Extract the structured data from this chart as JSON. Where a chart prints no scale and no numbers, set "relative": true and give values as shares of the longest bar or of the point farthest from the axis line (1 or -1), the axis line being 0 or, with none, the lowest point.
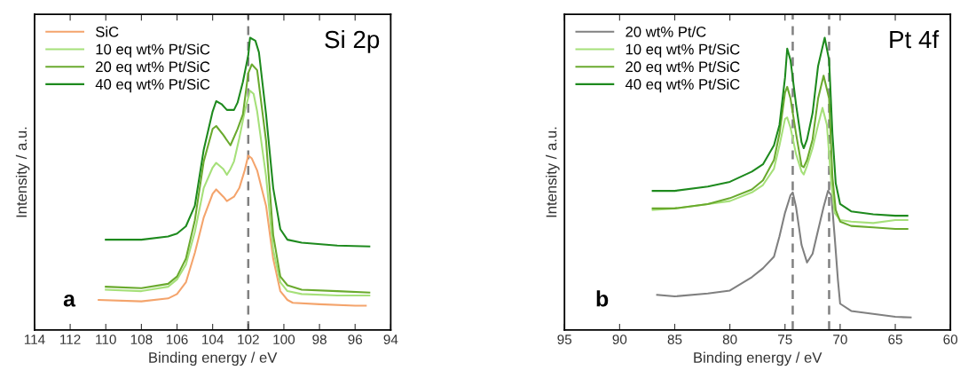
{
  "chart_data": [
    {
      "type": "line",
      "relative": true,
      "xlabel": "Binding energy / eV",
      "ylabel": "Intensity / a.u.",
      "xlim": [
        114,
        94
      ],
      "xticks": [
        114,
        112,
        110,
        108,
        106,
        104,
        102,
        100,
        98,
        96,
        94
      ],
      "legend": "top left",
      "tick_labels": "x",
      "annotations": [
        "Si 2p",
        "a"
      ],
      "ref_lines": [
        {
          "axis": "x",
          "value": 102.0,
          "color": "#808080",
          "line_style": "dashed"
        }
      ],
      "series": [
        {
          "name": "SiC",
          "color": "#f4a46c",
          "x": [
            110.4,
            108,
            106.5,
            106,
            105.5,
            105,
            104.5,
            104,
            103.8,
            103.4,
            103.2,
            102.8,
            102.5,
            102.2,
            102,
            101.8,
            101.5,
            101,
            100.6,
            100.2,
            99.8,
            99.5,
            98,
            96,
            95.4
          ],
          "values": [
            0.103,
            0.098,
            0.108,
            0.123,
            0.163,
            0.264,
            0.385,
            0.466,
            0.481,
            0.456,
            0.441,
            0.456,
            0.486,
            0.546,
            0.597,
            0.587,
            0.546,
            0.425,
            0.244,
            0.133,
            0.103,
            0.093,
            0.088,
            0.083,
            0.083
          ]
        },
        {
          "name": "10 eq wt% Pt/SiC",
          "color": "#a6e07a",
          "x": [
            110,
            108,
            106.5,
            106,
            105.5,
            105,
            104.5,
            104,
            103.8,
            103.4,
            103.2,
            103,
            102.8,
            102.5,
            102.2,
            101.9,
            101.7,
            101.5,
            101,
            100.6,
            100.2,
            99.8,
            99,
            97,
            95.2
          ],
          "values": [
            0.138,
            0.133,
            0.148,
            0.173,
            0.224,
            0.335,
            0.486,
            0.556,
            0.572,
            0.551,
            0.531,
            0.551,
            0.577,
            0.657,
            0.748,
            0.819,
            0.808,
            0.748,
            0.526,
            0.274,
            0.163,
            0.133,
            0.123,
            0.118,
            0.118
          ]
        },
        {
          "name": "20 eq wt% Pt/SiC",
          "color": "#6aaa2e",
          "x": [
            110,
            108,
            106.5,
            106,
            105.5,
            105,
            104.5,
            104,
            103.8,
            103.4,
            103,
            102.6,
            102.3,
            102,
            101.8,
            101.5,
            101,
            100.6,
            100.2,
            99.8,
            99,
            97,
            95.2
          ],
          "values": [
            0.148,
            0.143,
            0.158,
            0.183,
            0.244,
            0.375,
            0.577,
            0.688,
            0.698,
            0.667,
            0.632,
            0.688,
            0.738,
            0.879,
            0.909,
            0.889,
            0.647,
            0.325,
            0.183,
            0.153,
            0.138,
            0.133,
            0.128
          ]
        },
        {
          "name": "40 eq wt% Pt/SiC",
          "color": "#1e8a1e",
          "x": [
            110,
            108,
            106.5,
            106,
            105.5,
            105,
            104.5,
            104,
            103.8,
            103.5,
            103.2,
            102.8,
            102.6,
            102.3,
            102,
            101.9,
            101.6,
            101.4,
            101,
            100.6,
            100.2,
            99.8,
            99,
            97,
            95.2
          ],
          "values": [
            0.309,
            0.309,
            0.32,
            0.33,
            0.355,
            0.425,
            0.617,
            0.748,
            0.783,
            0.773,
            0.753,
            0.753,
            0.778,
            0.849,
            0.94,
            1,
            0.99,
            0.95,
            0.738,
            0.486,
            0.345,
            0.309,
            0.299,
            0.289,
            0.286
          ]
        }
      ]
    },
    {
      "type": "line",
      "relative": true,
      "xlabel": "Binding energy / eV",
      "ylabel": "Intensity / a.u.",
      "xlim": [
        95,
        60
      ],
      "xticks": [
        95,
        90,
        85,
        80,
        75,
        70,
        65,
        60
      ],
      "legend": "top left",
      "tick_labels": "x",
      "annotations": [
        "Pt 4f",
        "b"
      ],
      "ref_lines": [
        {
          "axis": "x",
          "value": 74.3,
          "color": "#808080",
          "line_style": "dashed"
        },
        {
          "axis": "x",
          "value": 71.0,
          "color": "#808080",
          "line_style": "dashed"
        }
      ],
      "series": [
        {
          "name": "20 wt% Pt/C",
          "color": "#808080",
          "x": [
            86.6,
            85,
            82,
            80,
            78,
            77,
            76,
            75.5,
            75,
            74.5,
            74.3,
            74,
            73.5,
            73,
            72.5,
            72,
            71.5,
            71.1,
            70.8,
            70.5,
            70.2,
            70,
            69,
            67,
            65,
            63.6
          ],
          "values": [
            0.12,
            0.115,
            0.125,
            0.135,
            0.181,
            0.211,
            0.251,
            0.321,
            0.401,
            0.461,
            0.471,
            0.421,
            0.291,
            0.231,
            0.261,
            0.341,
            0.421,
            0.476,
            0.461,
            0.321,
            0.171,
            0.09,
            0.065,
            0.055,
            0.045,
            0.043
          ]
        },
        {
          "name": "10 eq wt% Pt/SiC",
          "color": "#a6e07a",
          "x": [
            87,
            85,
            82,
            80,
            78,
            77,
            76,
            75.5,
            75,
            74.8,
            74.5,
            74,
            73.5,
            73.3,
            73,
            72.5,
            72,
            71.6,
            71.2,
            70.8,
            70.5,
            70,
            69,
            67,
            65,
            63.9
          ],
          "values": [
            0.411,
            0.416,
            0.431,
            0.441,
            0.471,
            0.496,
            0.552,
            0.632,
            0.722,
            0.727,
            0.692,
            0.602,
            0.542,
            0.532,
            0.562,
            0.622,
            0.702,
            0.76,
            0.702,
            0.502,
            0.401,
            0.376,
            0.371,
            0.366,
            0.376,
            0.376
          ]
        },
        {
          "name": "20 eq wt% Pt/SiC",
          "color": "#6aaa2e",
          "x": [
            87,
            85,
            82,
            80,
            78,
            77,
            76,
            75.5,
            75,
            74.8,
            74.5,
            74,
            73.5,
            73.3,
            73,
            72.5,
            72,
            71.5,
            71,
            70.7,
            70.4,
            70,
            69,
            67,
            65,
            63.9
          ],
          "values": [
            0.416,
            0.416,
            0.431,
            0.451,
            0.481,
            0.512,
            0.582,
            0.672,
            0.812,
            0.832,
            0.792,
            0.672,
            0.562,
            0.557,
            0.582,
            0.652,
            0.792,
            0.87,
            0.792,
            0.522,
            0.411,
            0.371,
            0.356,
            0.351,
            0.346,
            0.346
          ]
        },
        {
          "name": "40 eq wt% Pt/SiC",
          "color": "#1e8a1e",
          "x": [
            87,
            85,
            82,
            80,
            78,
            77,
            76,
            75.5,
            75,
            74.8,
            74.5,
            74,
            73.5,
            73.3,
            73,
            72.5,
            72,
            71.4,
            71,
            70.7,
            70.4,
            70,
            69,
            67,
            65,
            63.9
          ],
          "values": [
            0.476,
            0.476,
            0.491,
            0.507,
            0.542,
            0.567,
            0.632,
            0.702,
            0.863,
            0.963,
            0.923,
            0.772,
            0.642,
            0.622,
            0.652,
            0.742,
            0.903,
            1,
            0.923,
            0.672,
            0.502,
            0.431,
            0.406,
            0.396,
            0.391,
            0.391
          ]
        }
      ]
    }
  ]
}
